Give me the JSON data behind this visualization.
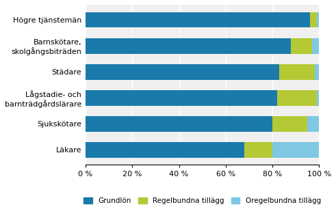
{
  "categories": [
    "Högre tjänstemän",
    "Barnskötare,\nskolgångsbiträden",
    "Städare",
    "Lågstadie- och\nbarnträdgårdslärare",
    "Sjukskötare",
    "Läkare"
  ],
  "grundlon": [
    96,
    88,
    83,
    82,
    80,
    68
  ],
  "regelbundna": [
    3,
    9,
    15,
    17,
    15,
    12
  ],
  "oregelbundna": [
    1,
    3,
    2,
    1,
    5,
    20
  ],
  "color_grundlon": "#1a7aab",
  "color_regelbundna": "#b5c934",
  "color_oregelbundna": "#7ec8e3",
  "legend_grundlon": "Grundlön",
  "legend_regelbundna": "Regelbundna tillägg",
  "legend_oregelbundna": "Oregelbundna tillägg",
  "xlim": [
    0,
    100
  ],
  "xticks": [
    0,
    20,
    40,
    60,
    80,
    100
  ],
  "xtick_labels": [
    "0 %",
    "20 %",
    "40 %",
    "60 %",
    "80 %",
    "100 %"
  ]
}
